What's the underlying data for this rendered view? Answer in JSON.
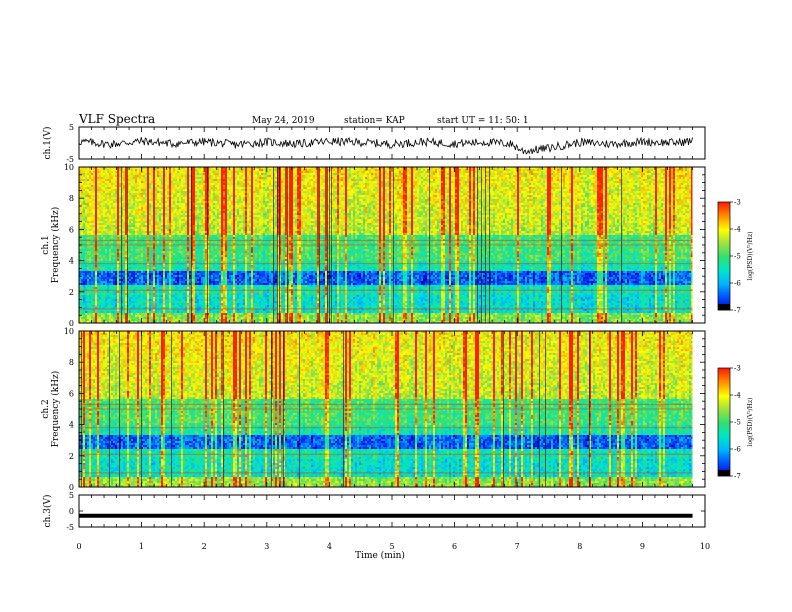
{
  "header": {
    "title": "VLF Spectra",
    "date": "May 24, 2019",
    "station": "station= KAP",
    "start": "start  UT =   11: 50: 1"
  },
  "colors": {
    "colormap": [
      "#000000",
      "#0000c8",
      "#0050ff",
      "#00b4ff",
      "#00e6c8",
      "#30e070",
      "#a0e040",
      "#ffff00",
      "#ff9000",
      "#ff2000",
      "#ffffff"
    ],
    "trace": "#000000"
  },
  "chart_data": [
    {
      "type": "line",
      "ylabel": "ch.1(V)",
      "xlim": [
        0,
        10
      ],
      "ylim": [
        -5,
        5
      ],
      "ytick_labels": [
        "5",
        "-5"
      ],
      "x": [
        0,
        0.5,
        1,
        1.5,
        2,
        2.5,
        3,
        3.5,
        4,
        4.5,
        5,
        5.5,
        6,
        6.5,
        6.9,
        7.1,
        7.5,
        8,
        8.5,
        9,
        9.5,
        9.8
      ],
      "y": [
        0.5,
        -0.4,
        0.6,
        -0.2,
        0.4,
        -0.5,
        0.3,
        -0.3,
        0.5,
        0.2,
        -0.4,
        0.4,
        -0.2,
        0.3,
        -0.3,
        -2.6,
        -1.6,
        0.2,
        -0.3,
        0.4,
        0.1,
        0.6
      ]
    },
    {
      "type": "heatmap",
      "ylabel": "ch.1\nFrequency (kHz)",
      "xlim": [
        0,
        10
      ],
      "ylim": [
        0,
        10
      ],
      "ytick_labels": [
        "0",
        "2",
        "4",
        "6",
        "8",
        "10"
      ],
      "value_range_note": "log10 PSD",
      "data_extent_x": [
        0,
        9.8
      ],
      "colorbar": {
        "label": "log(PSD)(V²/Hz)",
        "range": [
          -7,
          -3
        ],
        "ticks": [
          "-3",
          "-4",
          "-5",
          "-6",
          "-7"
        ]
      }
    },
    {
      "type": "heatmap",
      "ylabel": "ch.2\nFrequency (kHz)",
      "xlim": [
        0,
        10
      ],
      "ylim": [
        0,
        10
      ],
      "ytick_labels": [
        "0",
        "2",
        "4",
        "6",
        "8",
        "10"
      ],
      "data_extent_x": [
        0,
        9.8
      ],
      "colorbar": {
        "label": "log(PSD)(V²/Hz)",
        "range": [
          -7,
          -3
        ],
        "ticks": [
          "-3",
          "-4",
          "-5",
          "-6",
          "-7"
        ]
      }
    },
    {
      "type": "line",
      "ylabel": "ch.3(V)",
      "xlim": [
        0,
        10
      ],
      "ylim": [
        -5,
        5
      ],
      "ytick_labels": [
        "5",
        "0",
        "-5"
      ],
      "x": [
        0,
        9.8
      ],
      "y": [
        -1.5,
        -1.5
      ]
    }
  ],
  "xaxis": {
    "label": "Time (min)",
    "tick_labels": [
      "0",
      "1",
      "2",
      "3",
      "4",
      "5",
      "6",
      "7",
      "8",
      "9",
      "10"
    ]
  }
}
